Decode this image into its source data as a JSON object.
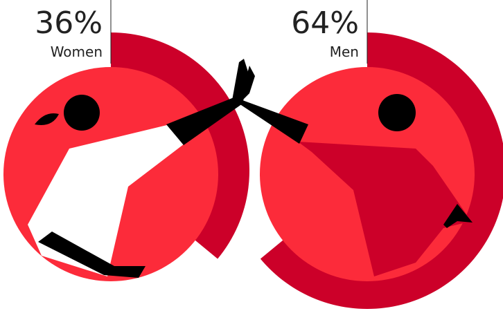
{
  "chart_data": {
    "type": "arc",
    "categories": [
      "Women",
      "Men"
    ],
    "values": [
      36,
      64
    ],
    "value_labels": [
      "36%",
      "64%"
    ],
    "color": "#cc0029"
  }
}
